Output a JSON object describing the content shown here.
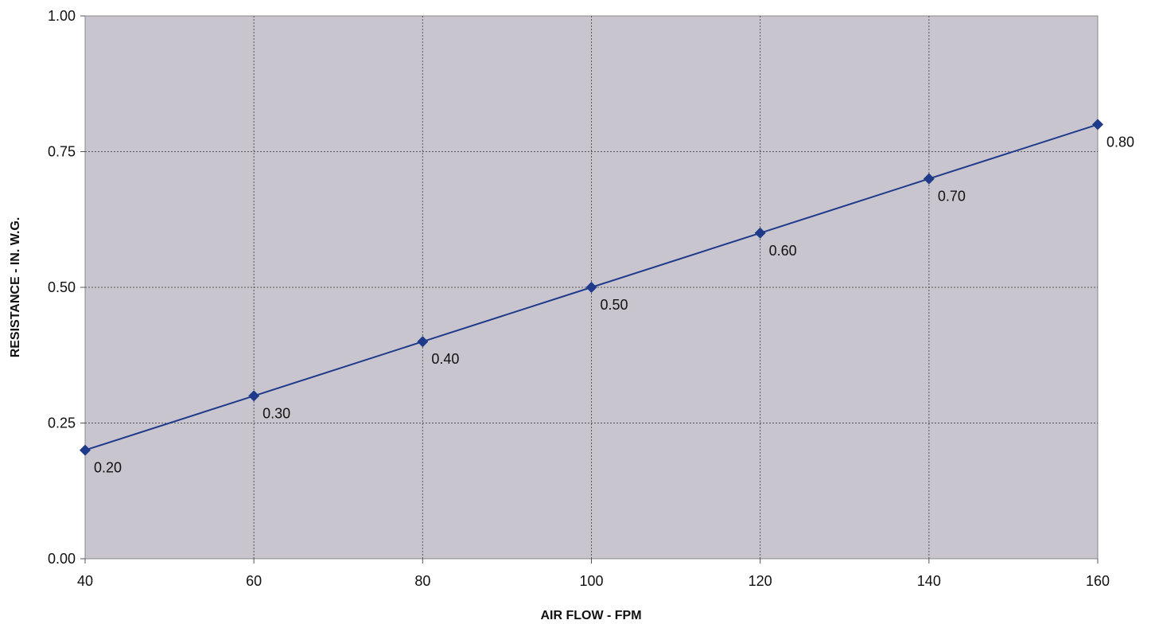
{
  "chart_data": {
    "type": "line",
    "xlabel": "AIR FLOW - FPM",
    "ylabel": "RESISTANCE - IN. W.G.",
    "xlim": [
      40,
      160
    ],
    "ylim": [
      0,
      1
    ],
    "x_ticks": [
      "40",
      "60",
      "80",
      "100",
      "120",
      "140",
      "160"
    ],
    "y_ticks": [
      "0.00",
      "0.25",
      "0.50",
      "0.75",
      "1.00"
    ],
    "grid": true,
    "series": [
      {
        "x": [
          40,
          60,
          80,
          100,
          120,
          140,
          160
        ],
        "values": [
          0.2,
          0.3,
          0.4,
          0.5,
          0.6,
          0.7,
          0.8
        ],
        "labels": [
          "0.20",
          "0.30",
          "0.40",
          "0.50",
          "0.60",
          "0.70",
          "0.80"
        ],
        "color": "#1f3a8a",
        "marker": "diamond"
      }
    ],
    "plot_background": "#c9c5ce"
  }
}
